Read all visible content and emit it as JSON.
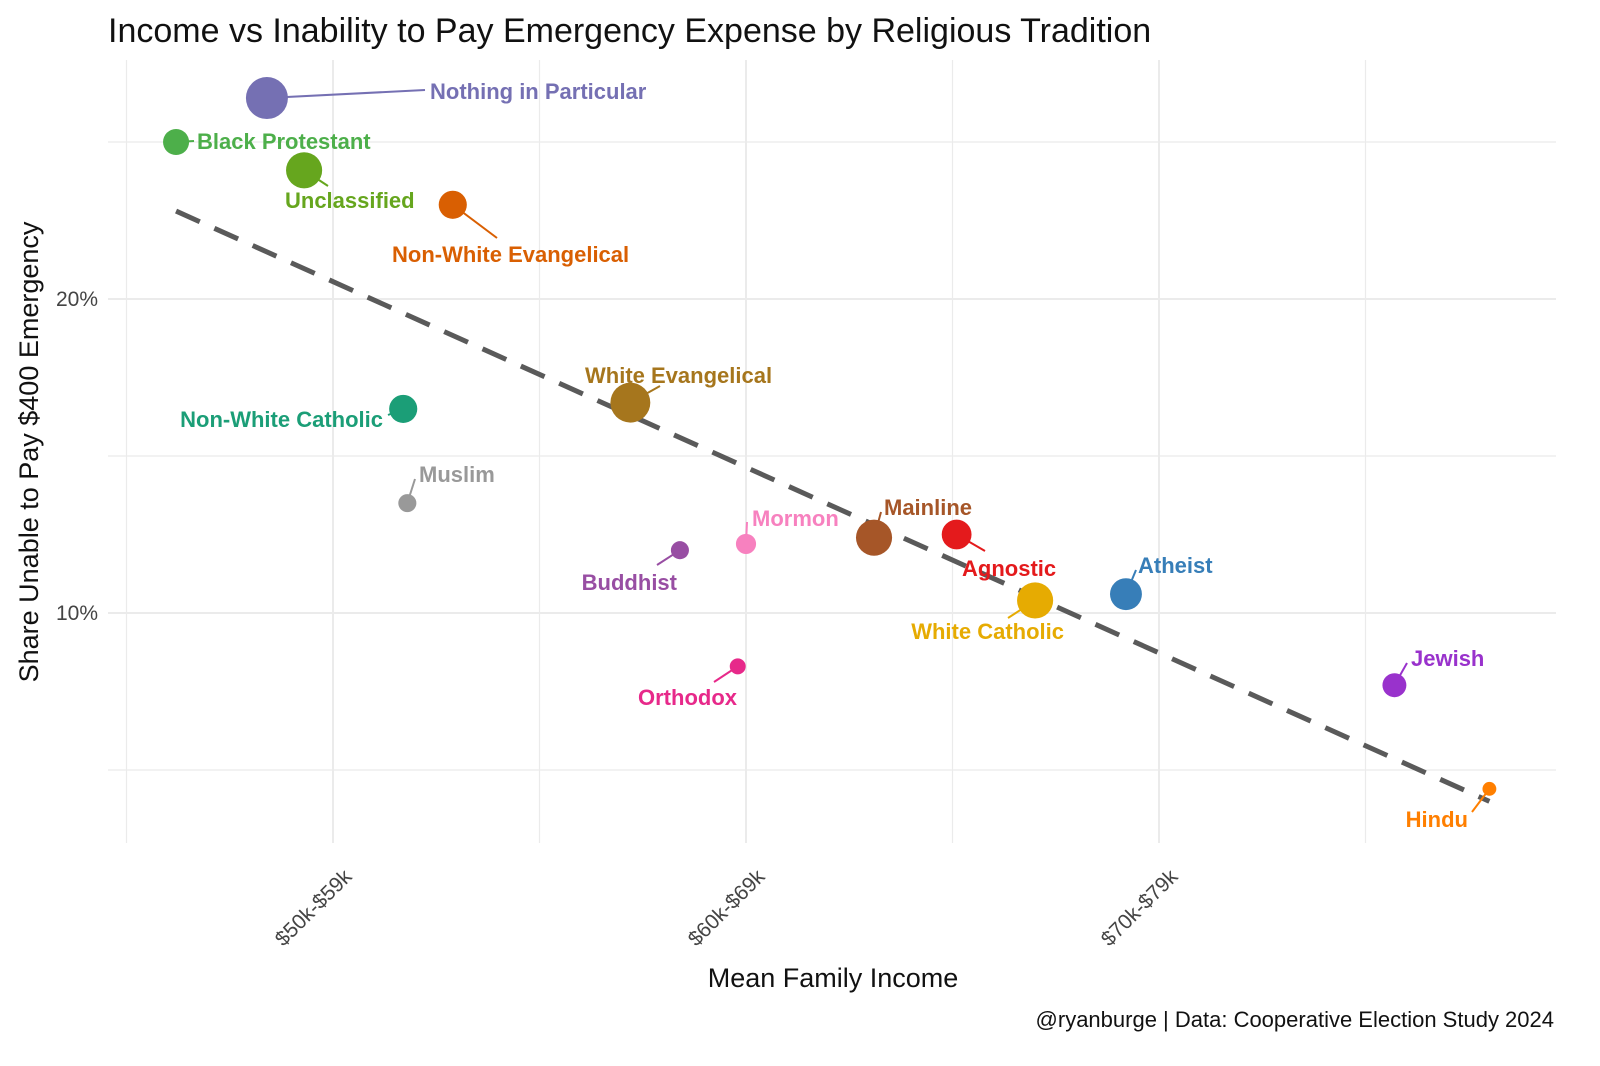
{
  "chart_data": {
    "type": "scatter",
    "title": "Income vs Inability to Pay Emergency Expense by Religious Tradition",
    "xlabel": "Mean Family Income",
    "ylabel": "Share Unable to Pay $400 Emergency",
    "caption": "@ryanburge | Data: Cooperative Election Study 2024",
    "x_note": "x is income bracket index: 5 = $50k-$59k, 6 = $60k-$69k, 7 = $70k-$79k",
    "x_ticks": [
      {
        "value": 5,
        "label": "$50k-$59k"
      },
      {
        "value": 6,
        "label": "$60k-$69k"
      },
      {
        "value": 7,
        "label": "$70k-$79k"
      }
    ],
    "y_ticks": [
      {
        "value": 10,
        "label": "10%"
      },
      {
        "value": 20,
        "label": "20%"
      }
    ],
    "xlim": [
      4.5,
      7.9
    ],
    "ylim": [
      2.7,
      27.6
    ],
    "grid": true,
    "points": [
      {
        "name": "Nothing in Particular",
        "x": 4.84,
        "y": 26.4,
        "relative_size": 1.0,
        "color": "#7570b3"
      },
      {
        "name": "Black Protestant",
        "x": 4.62,
        "y": 25.0,
        "relative_size": 0.62,
        "color": "#4daf4a"
      },
      {
        "name": "Unclassified",
        "x": 4.93,
        "y": 24.1,
        "relative_size": 0.86,
        "color": "#66a61e"
      },
      {
        "name": "Non-White Evangelical",
        "x": 5.29,
        "y": 23.0,
        "relative_size": 0.67,
        "color": "#d95f02"
      },
      {
        "name": "Non-White Catholic",
        "x": 5.17,
        "y": 16.5,
        "relative_size": 0.67,
        "color": "#1b9e77"
      },
      {
        "name": "Muslim",
        "x": 5.18,
        "y": 13.5,
        "relative_size": 0.43,
        "color": "#999999"
      },
      {
        "name": "White Evangelical",
        "x": 5.72,
        "y": 16.7,
        "relative_size": 0.95,
        "color": "#a6761d"
      },
      {
        "name": "Buddhist",
        "x": 5.84,
        "y": 12.0,
        "relative_size": 0.43,
        "color": "#984ea3"
      },
      {
        "name": "Mormon",
        "x": 6.0,
        "y": 12.2,
        "relative_size": 0.48,
        "color": "#f781bf"
      },
      {
        "name": "Orthodox",
        "x": 5.98,
        "y": 8.3,
        "relative_size": 0.38,
        "color": "#e7298a"
      },
      {
        "name": "Mainline",
        "x": 6.31,
        "y": 12.4,
        "relative_size": 0.86,
        "color": "#a65628"
      },
      {
        "name": "Agnostic",
        "x": 6.51,
        "y": 12.5,
        "relative_size": 0.71,
        "color": "#e41a1c"
      },
      {
        "name": "White Catholic",
        "x": 6.7,
        "y": 10.4,
        "relative_size": 0.86,
        "color": "#e6ab02"
      },
      {
        "name": "Atheist",
        "x": 6.92,
        "y": 10.6,
        "relative_size": 0.76,
        "color": "#377eb8"
      },
      {
        "name": "Jewish",
        "x": 7.57,
        "y": 7.7,
        "relative_size": 0.57,
        "color": "#9932cc"
      },
      {
        "name": "Hindu",
        "x": 7.8,
        "y": 4.4,
        "relative_size": 0.33,
        "color": "#ff7f00"
      }
    ],
    "trend_line": {
      "style": "dashed",
      "color": "#5a5a5a",
      "x": [
        4.62,
        7.8
      ],
      "y": [
        22.8,
        4.0
      ]
    }
  }
}
